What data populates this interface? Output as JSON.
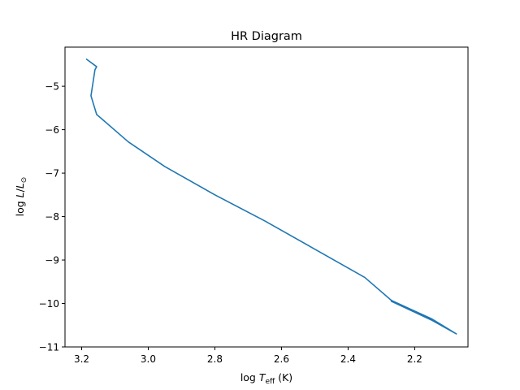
{
  "chart_data": {
    "type": "line",
    "title": "HR Diagram",
    "xlabel": {
      "main": "log ",
      "var": "T",
      "sub": "eff",
      "tail": " (K)"
    },
    "ylabel": {
      "main": "log ",
      "var": "L",
      "sep": "/",
      "var2": "L",
      "sub": "⊙"
    },
    "xlim": [
      3.25,
      2.04
    ],
    "ylim": [
      -11.0,
      -4.1
    ],
    "x_ticks": [
      3.2,
      3.0,
      2.8,
      2.6,
      2.4,
      2.2
    ],
    "x_tick_labels": [
      "3.2",
      "3.0",
      "2.8",
      "2.6",
      "2.4",
      "2.2"
    ],
    "y_ticks": [
      -5,
      -6,
      -7,
      -8,
      -9,
      -10,
      -11
    ],
    "y_tick_labels": [
      "−5",
      "−6",
      "−7",
      "−8",
      "−9",
      "−10",
      "−11"
    ],
    "grid": false,
    "series": [
      {
        "color": "#1f77b4",
        "x": [
          3.185,
          3.155,
          3.16,
          3.172,
          3.155,
          3.06,
          2.95,
          2.8,
          2.65,
          2.5,
          2.35,
          2.27,
          2.15,
          2.075,
          2.15,
          2.27
        ],
        "y": [
          -4.38,
          -4.55,
          -4.62,
          -5.22,
          -5.65,
          -6.28,
          -6.85,
          -7.5,
          -8.1,
          -8.75,
          -9.4,
          -9.93,
          -10.35,
          -10.7,
          -10.38,
          -9.95
        ]
      }
    ]
  }
}
